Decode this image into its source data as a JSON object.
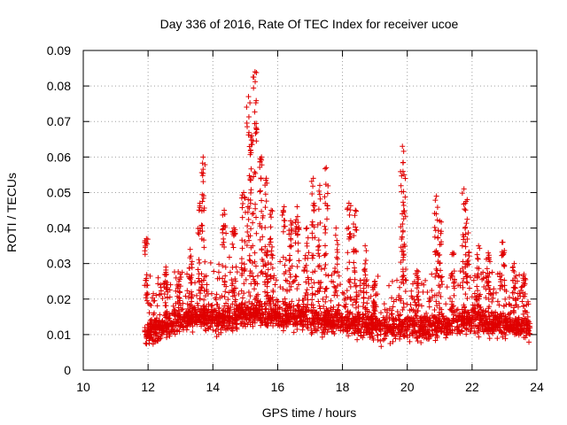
{
  "chart_data": {
    "type": "scatter",
    "title": "Day 336 of 2016, Rate Of TEC Index for receiver ucoe",
    "xlabel": "GPS time / hours",
    "ylabel": "ROTI / TECUs",
    "xlim": [
      10,
      24
    ],
    "ylim": [
      0,
      0.09
    ],
    "xticks": [
      "10",
      "12",
      "14",
      "16",
      "18",
      "20",
      "22",
      "24"
    ],
    "yticks": [
      "0",
      "0.01",
      "0.02",
      "0.03",
      "0.04",
      "0.05",
      "0.06",
      "0.07",
      "0.08",
      "0.09"
    ],
    "grid": true,
    "marker": "+",
    "series": [
      {
        "name": "ROTI",
        "color": "#e00000",
        "x_range": [
          11.9,
          23.8
        ],
        "baseline": [
          [
            11.9,
            0.011
          ],
          [
            12.3,
            0.012
          ],
          [
            12.7,
            0.013
          ],
          [
            13.2,
            0.014
          ],
          [
            13.7,
            0.015
          ],
          [
            14.2,
            0.014
          ],
          [
            14.7,
            0.015
          ],
          [
            15.2,
            0.016
          ],
          [
            15.7,
            0.016
          ],
          [
            16.2,
            0.015
          ],
          [
            16.7,
            0.015
          ],
          [
            17.2,
            0.014
          ],
          [
            17.7,
            0.014
          ],
          [
            18.2,
            0.013
          ],
          [
            18.7,
            0.013
          ],
          [
            19.2,
            0.012
          ],
          [
            19.7,
            0.012
          ],
          [
            20.2,
            0.012
          ],
          [
            20.7,
            0.012
          ],
          [
            21.2,
            0.013
          ],
          [
            21.7,
            0.014
          ],
          [
            22.2,
            0.014
          ],
          [
            22.7,
            0.013
          ],
          [
            23.2,
            0.013
          ],
          [
            23.8,
            0.012
          ]
        ],
        "spikes": [
          {
            "x": 11.95,
            "y": 0.037
          },
          {
            "x": 12.55,
            "y": 0.029
          },
          {
            "x": 12.95,
            "y": 0.025
          },
          {
            "x": 13.3,
            "y": 0.034
          },
          {
            "x": 13.6,
            "y": 0.047
          },
          {
            "x": 13.7,
            "y": 0.06
          },
          {
            "x": 14.35,
            "y": 0.045
          },
          {
            "x": 14.65,
            "y": 0.04
          },
          {
            "x": 14.95,
            "y": 0.05
          },
          {
            "x": 15.1,
            "y": 0.077
          },
          {
            "x": 15.2,
            "y": 0.066
          },
          {
            "x": 15.3,
            "y": 0.084
          },
          {
            "x": 15.5,
            "y": 0.06
          },
          {
            "x": 15.65,
            "y": 0.054
          },
          {
            "x": 15.8,
            "y": 0.045
          },
          {
            "x": 16.2,
            "y": 0.046
          },
          {
            "x": 16.4,
            "y": 0.042
          },
          {
            "x": 16.6,
            "y": 0.046
          },
          {
            "x": 16.9,
            "y": 0.04
          },
          {
            "x": 17.1,
            "y": 0.054
          },
          {
            "x": 17.3,
            "y": 0.052
          },
          {
            "x": 17.5,
            "y": 0.057
          },
          {
            "x": 17.8,
            "y": 0.04
          },
          {
            "x": 18.2,
            "y": 0.047
          },
          {
            "x": 18.4,
            "y": 0.045
          },
          {
            "x": 18.7,
            "y": 0.035
          },
          {
            "x": 19.0,
            "y": 0.025
          },
          {
            "x": 19.85,
            "y": 0.063
          },
          {
            "x": 19.9,
            "y": 0.055
          },
          {
            "x": 20.3,
            "y": 0.028
          },
          {
            "x": 20.9,
            "y": 0.049
          },
          {
            "x": 21.0,
            "y": 0.042
          },
          {
            "x": 21.4,
            "y": 0.033
          },
          {
            "x": 21.75,
            "y": 0.051
          },
          {
            "x": 21.85,
            "y": 0.048
          },
          {
            "x": 22.2,
            "y": 0.035
          },
          {
            "x": 22.5,
            "y": 0.033
          },
          {
            "x": 22.95,
            "y": 0.036
          },
          {
            "x": 23.3,
            "y": 0.03
          },
          {
            "x": 23.6,
            "y": 0.027
          }
        ]
      }
    ]
  }
}
